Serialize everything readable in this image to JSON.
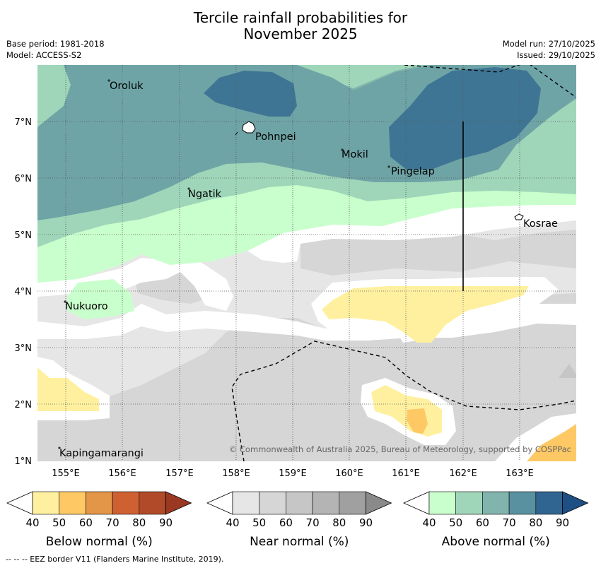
{
  "title": {
    "line1": "Tercile rainfall probabilities for",
    "line2": "November 2025"
  },
  "meta": {
    "base_period": "Base period: 1981-2018",
    "model": "Model: ACCESS-S2",
    "model_run": "Model run: 27/10/2025",
    "issued": "Issued: 29/10/2025"
  },
  "map": {
    "lon_labels": [
      "155°E",
      "156°E",
      "157°E",
      "158°E",
      "159°E",
      "160°E",
      "161°E",
      "162°E",
      "163°E"
    ],
    "lat_labels": [
      "7°N",
      "6°N",
      "5°N",
      "4°N",
      "3°N",
      "2°N",
      "1°N"
    ],
    "places": [
      "Oroluk",
      "Pohnpei",
      "Mokil",
      "Pingelap",
      "Ngatik",
      "Kosrae",
      "Nukuoro",
      "Kapingamarangi"
    ],
    "copyright": "© Commonwealth of Australia 2025, Bureau of Meteorology, supported by COSPPac"
  },
  "legends": [
    {
      "label": "Below normal (%)",
      "ticks": [
        "40",
        "50",
        "60",
        "70",
        "80",
        "90"
      ],
      "colors": [
        "#fff0a0",
        "#fec965",
        "#e39548",
        "#cf6032",
        "#b14a28",
        "#9a3822"
      ]
    },
    {
      "label": "Near normal (%)",
      "ticks": [
        "40",
        "50",
        "60",
        "70",
        "80",
        "90"
      ],
      "colors": [
        "#e6e6e6",
        "#d6d6d6",
        "#c6c6c6",
        "#b4b4b4",
        "#a0a0a0",
        "#8a8a8a"
      ]
    },
    {
      "label": "Above normal (%)",
      "ticks": [
        "40",
        "50",
        "60",
        "70",
        "80",
        "90"
      ],
      "colors": [
        "#c9ffcc",
        "#9fd6b9",
        "#80b4ad",
        "#5a91a0",
        "#306591",
        "#1d4f84"
      ]
    }
  ],
  "footer": "--  --  -- EEZ border V11 (Flanders Marine Institute, 2019)."
}
